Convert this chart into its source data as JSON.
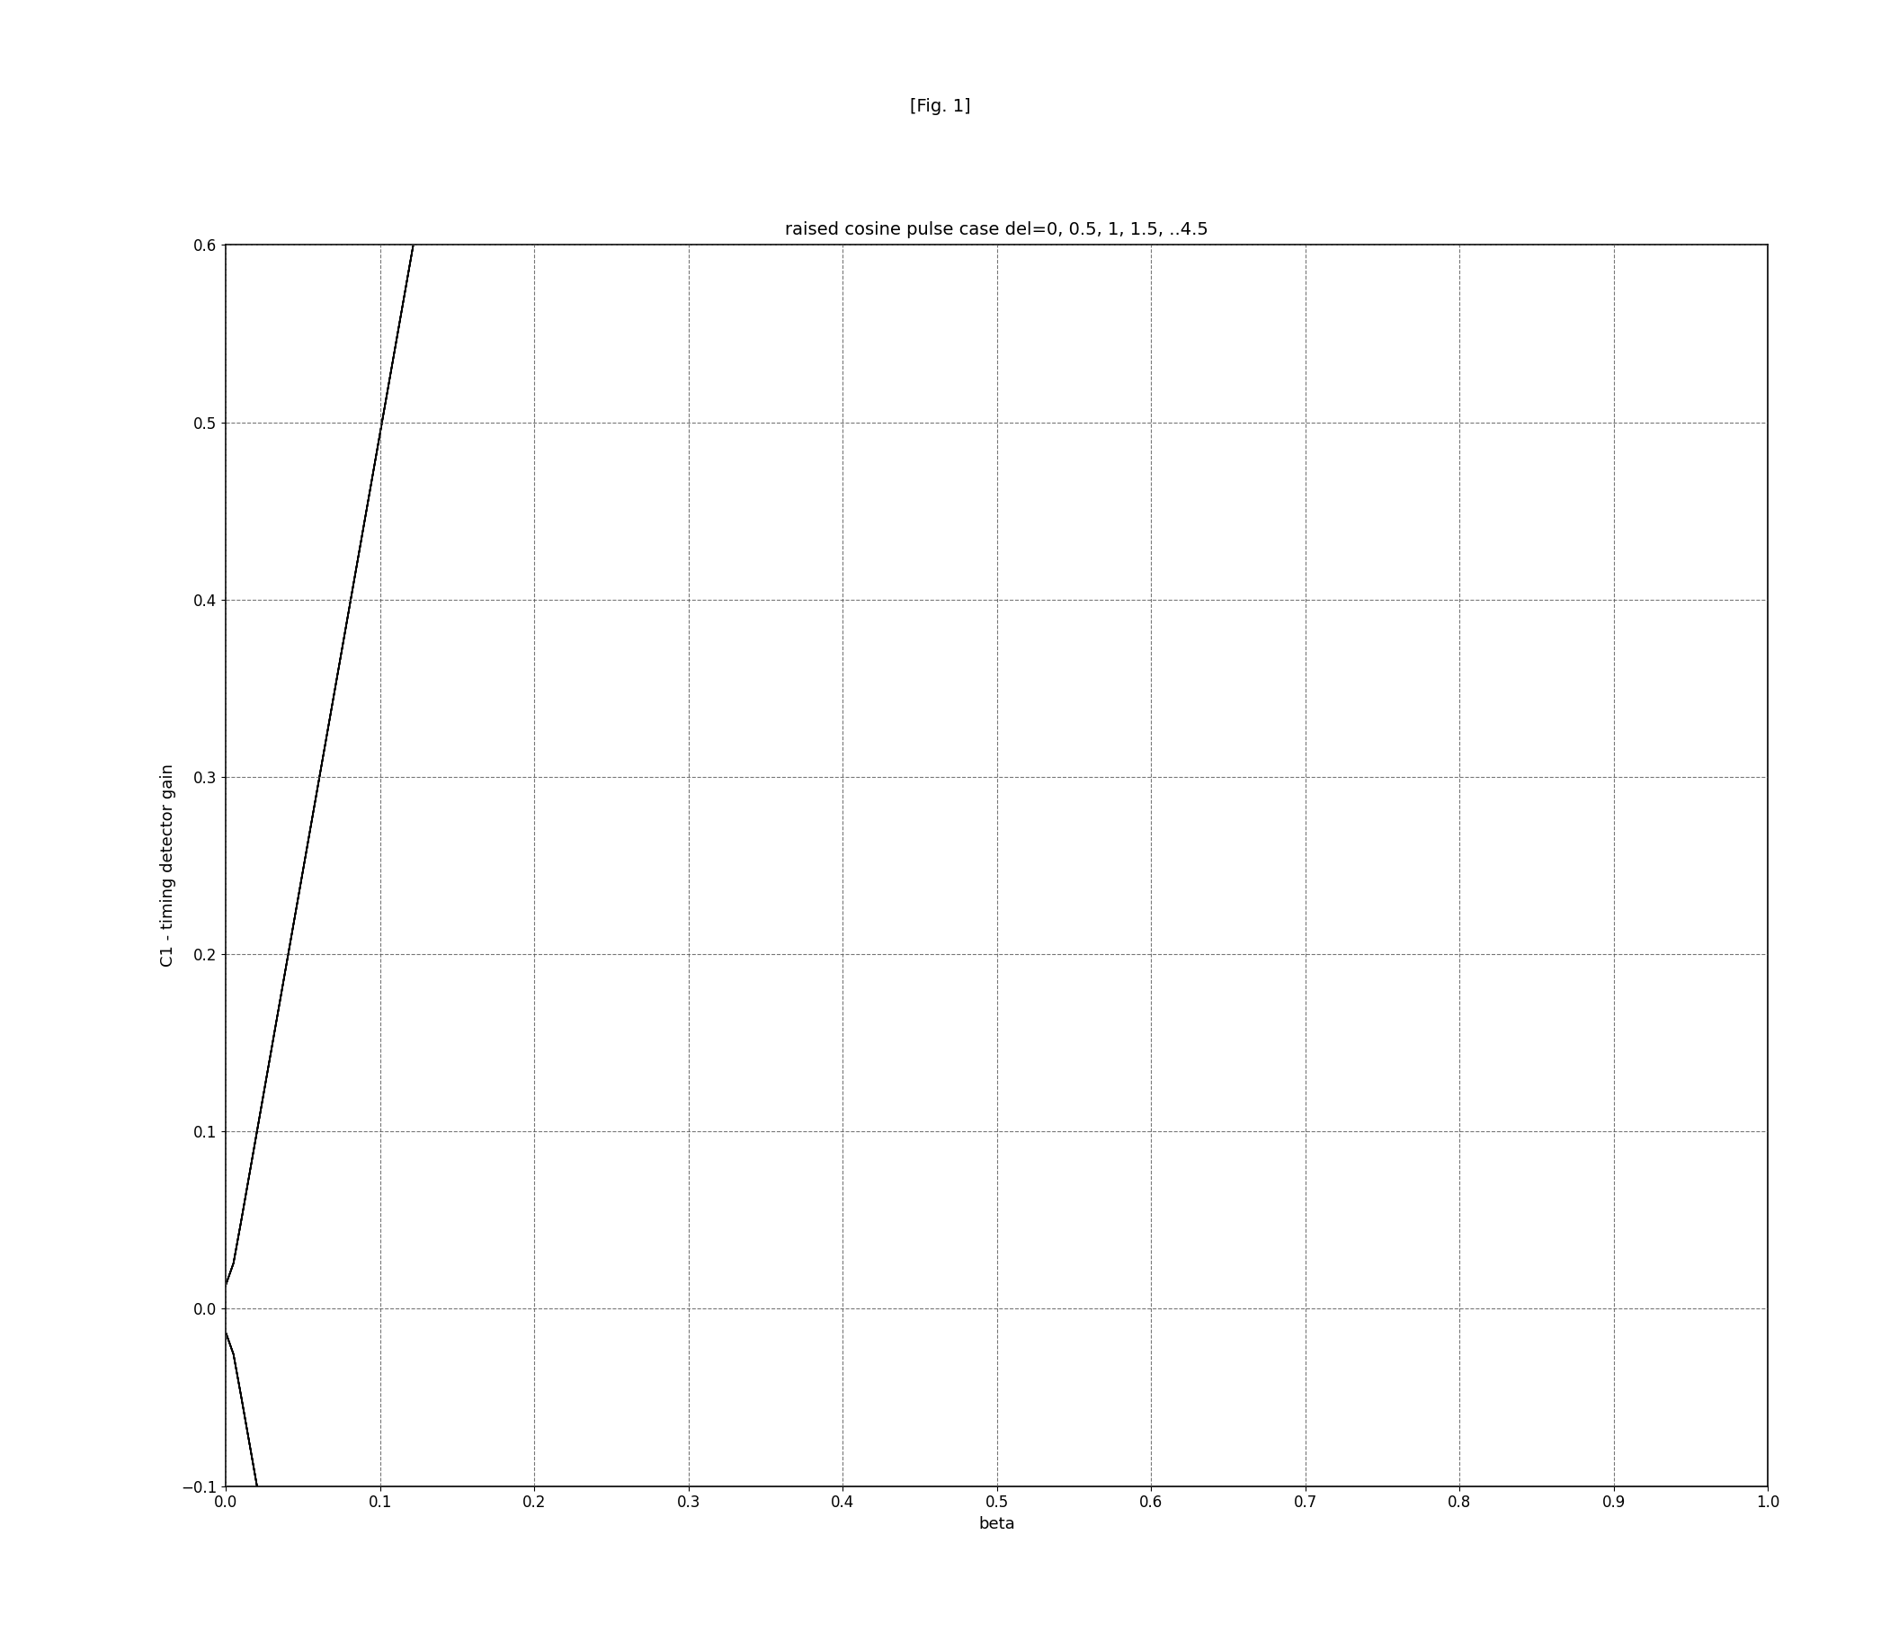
{
  "fig_label": "[Fig. 1]",
  "title": "raised cosine pulse case del=0, 0.5, 1, 1.5, ..4.5",
  "xlabel": "beta",
  "ylabel": "C1 - timing detector gain",
  "xlim": [
    0,
    1
  ],
  "ylim": [
    -0.1,
    0.6
  ],
  "xticks": [
    0,
    0.1,
    0.2,
    0.3,
    0.4,
    0.5,
    0.6,
    0.7,
    0.8,
    0.9,
    1
  ],
  "yticks": [
    -0.1,
    0,
    0.1,
    0.2,
    0.3,
    0.4,
    0.5,
    0.6
  ],
  "del_values": [
    0,
    0.5,
    1.0,
    1.5,
    2.0,
    2.5,
    3.0,
    3.5,
    4.0,
    4.5
  ],
  "line_color": "#000000",
  "background_color": "#ffffff",
  "title_fontsize": 14,
  "label_fontsize": 13,
  "tick_fontsize": 12,
  "fig_label_fontsize": 14
}
